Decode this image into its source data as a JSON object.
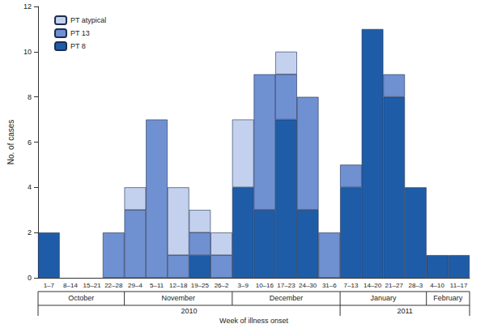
{
  "chart_data": {
    "type": "bar",
    "stacked": true,
    "grid": false,
    "legend": "upper left",
    "y_label": "No. of cases",
    "x_label": "Week of illness onset",
    "categories": [
      "1–7",
      "8–14",
      "15–21",
      "22–28",
      "29–4",
      "5–11",
      "12–18",
      "19–25",
      "26–2",
      "3–9",
      "10–16",
      "17–23",
      "24–30",
      "31–6",
      "7–13",
      "14–20",
      "21–27",
      "28–3",
      "4–10",
      "11–17"
    ],
    "series": [
      {
        "name": "PT 8",
        "color": "#1f5ca8",
        "values": [
          2,
          0,
          0,
          0,
          0,
          0,
          0,
          1,
          0,
          4,
          3,
          7,
          3,
          0,
          4,
          11,
          8,
          4,
          1,
          1
        ]
      },
      {
        "name": "PT 13",
        "color": "#6f91d2",
        "values": [
          0,
          0,
          0,
          2,
          3,
          7,
          1,
          1,
          1,
          0,
          6,
          2,
          5,
          2,
          1,
          0,
          1,
          0,
          0,
          0
        ]
      },
      {
        "name": "PT atypical",
        "color": "#c3d1ee",
        "values": [
          0,
          0,
          0,
          0,
          1,
          0,
          3,
          1,
          1,
          3,
          0,
          1,
          0,
          0,
          0,
          0,
          0,
          0,
          0,
          0
        ]
      }
    ],
    "month_groups": [
      {
        "label": "October",
        "count": 4
      },
      {
        "label": "November",
        "count": 5
      },
      {
        "label": "December",
        "count": 5
      },
      {
        "label": "January",
        "count": 4
      },
      {
        "label": "February",
        "count": 2
      }
    ],
    "year_groups": [
      {
        "label": "2010",
        "count": 14
      },
      {
        "label": "2011",
        "count": 6
      }
    ],
    "ylim": [
      0,
      12
    ],
    "yticks": [
      0,
      2,
      4,
      6,
      8,
      10,
      12
    ]
  }
}
